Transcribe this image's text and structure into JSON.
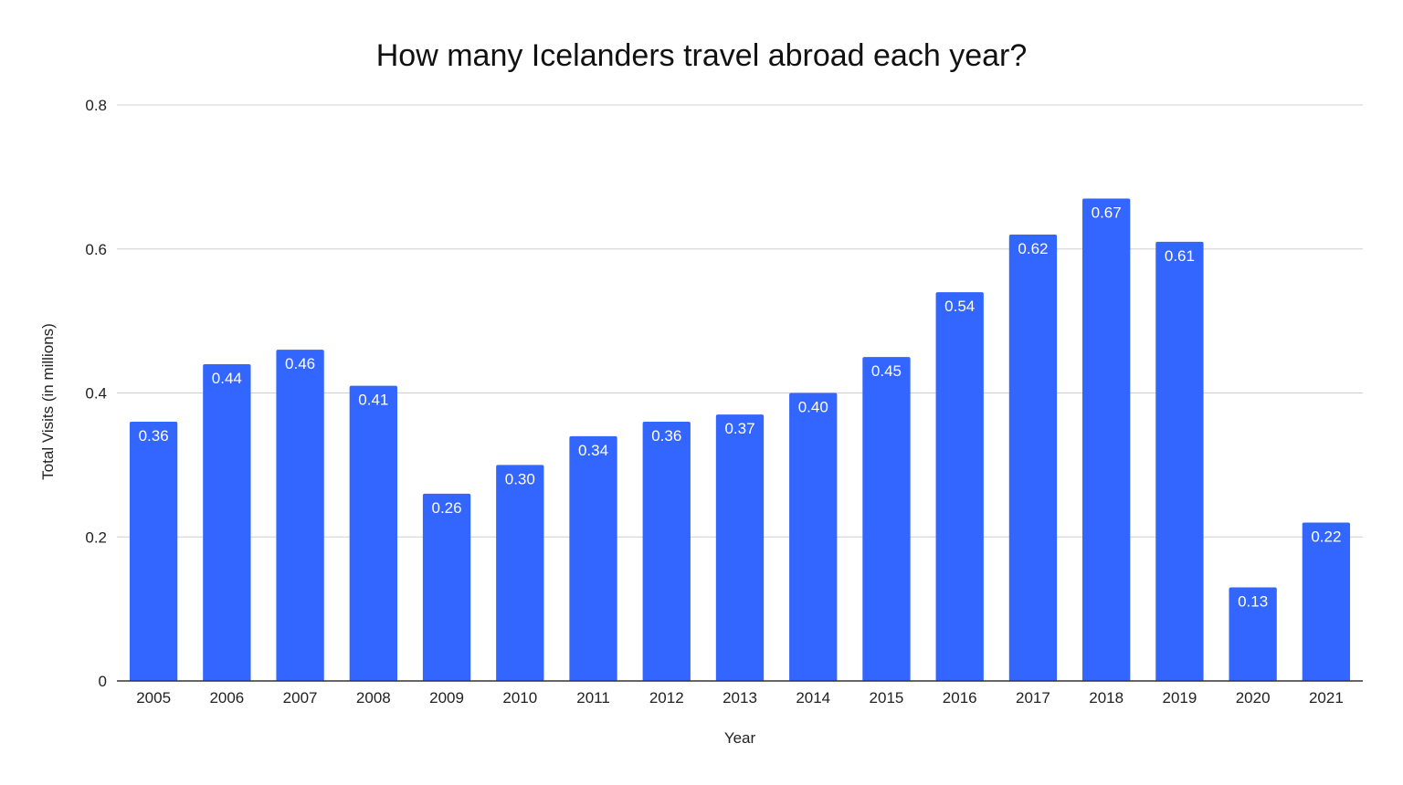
{
  "chart_data": {
    "type": "bar",
    "title": "How many Icelanders travel abroad each year?",
    "xlabel": "Year",
    "ylabel": "Total Visits (in millions)",
    "categories": [
      "2005",
      "2006",
      "2007",
      "2008",
      "2009",
      "2010",
      "2011",
      "2012",
      "2013",
      "2014",
      "2015",
      "2016",
      "2017",
      "2018",
      "2019",
      "2020",
      "2021"
    ],
    "values": [
      0.36,
      0.44,
      0.46,
      0.41,
      0.26,
      0.3,
      0.34,
      0.36,
      0.37,
      0.4,
      0.45,
      0.54,
      0.62,
      0.67,
      0.61,
      0.13,
      0.22
    ],
    "data_labels": [
      "0.36",
      "0.44",
      "0.46",
      "0.41",
      "0.26",
      "0.30",
      "0.34",
      "0.36",
      "0.37",
      "0.40",
      "0.45",
      "0.54",
      "0.62",
      "0.67",
      "0.61",
      "0.13",
      "0.22"
    ],
    "ylim": [
      0,
      0.8
    ],
    "yticks": [
      0,
      0.2,
      0.4,
      0.6,
      0.8
    ],
    "ytick_labels": [
      "0",
      "0.2",
      "0.4",
      "0.6",
      "0.8"
    ],
    "grid": true,
    "legend": "none",
    "colors": {
      "bar": "#3366ff",
      "grid": "#cfcfcf",
      "axis": "#333333"
    }
  }
}
